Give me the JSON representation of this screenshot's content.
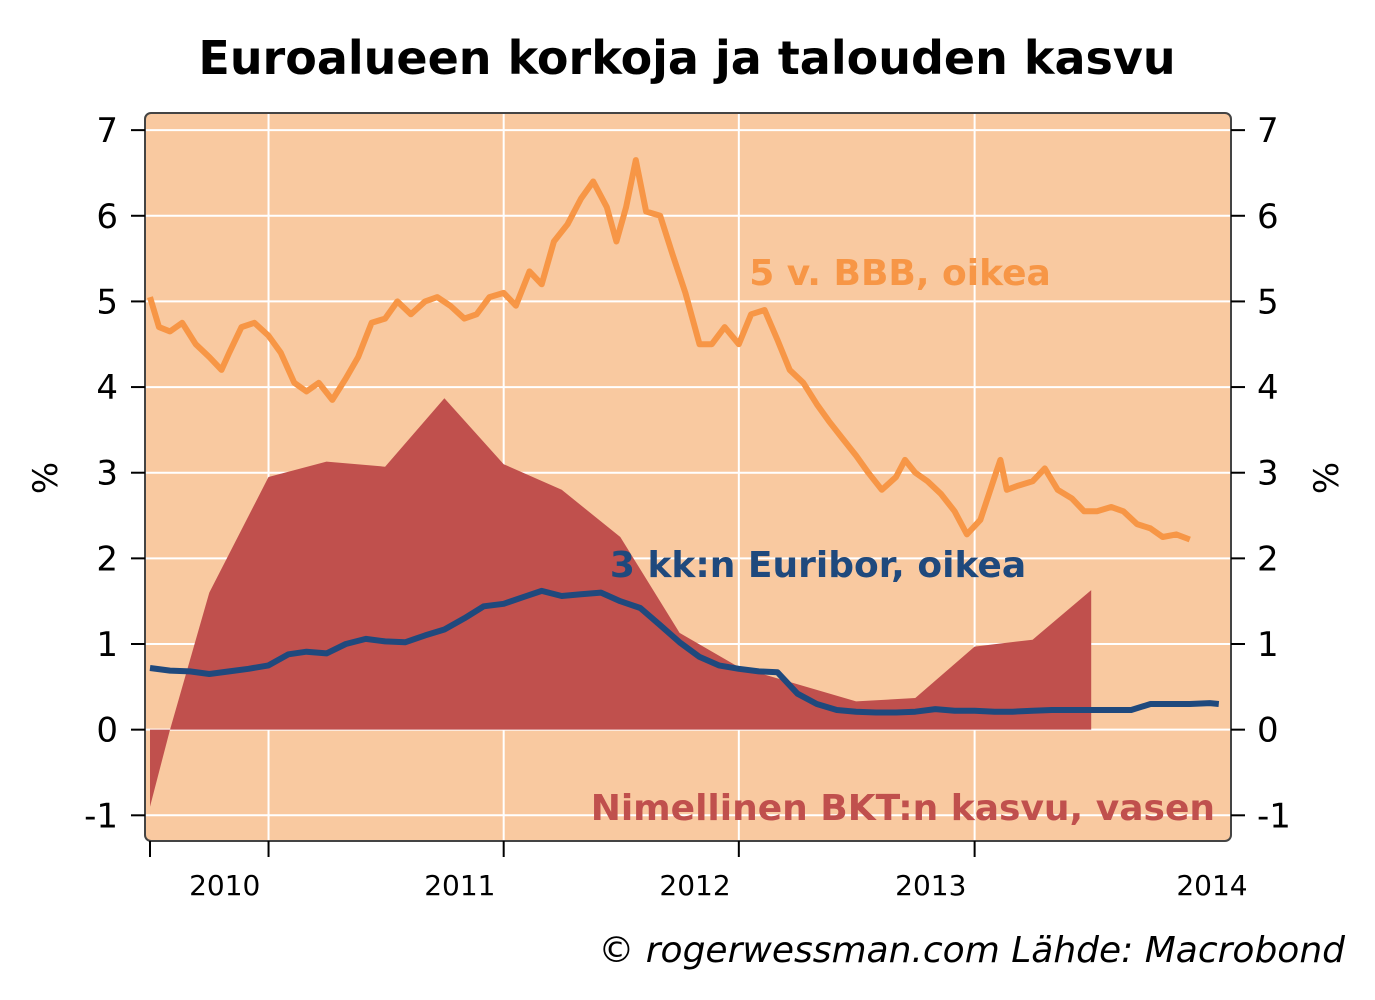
{
  "title": "Euroalueen korkoja ja talouden kasvu",
  "credit": "© rogerwessman.com Lähde: Macrobond",
  "colors": {
    "background": "#F9C9A0",
    "gdp": "#C0504D",
    "bbb": "#F79646",
    "euribor": "#1F497D",
    "grid": "#ffffff"
  },
  "chart_data": {
    "type": "line",
    "ylabel_left": "%",
    "ylabel_right": "%",
    "ylim": [
      -1.3,
      7.2
    ],
    "yticks": [
      "7",
      "6",
      "5",
      "4",
      "3",
      "2",
      "1",
      "0",
      "-1"
    ],
    "xlim": [
      "2009-07-01",
      "2014-01-20"
    ],
    "xticks": [
      "2010",
      "2011",
      "2012",
      "2013",
      "2014"
    ],
    "grid": true,
    "series": [
      {
        "name": "Nimellinen BKT:n kasvu, vasen",
        "type": "area",
        "axis": "left",
        "points": [
          [
            "2009-07-01",
            -0.9
          ],
          [
            "2009-08-01",
            0.0
          ],
          [
            "2009-10-01",
            1.6
          ],
          [
            "2010-01-01",
            2.95
          ],
          [
            "2010-04-01",
            3.13
          ],
          [
            "2010-07-01",
            3.07
          ],
          [
            "2010-10-01",
            3.87
          ],
          [
            "2011-01-01",
            3.1
          ],
          [
            "2011-04-01",
            2.8
          ],
          [
            "2011-07-01",
            2.25
          ],
          [
            "2011-10-01",
            1.13
          ],
          [
            "2012-01-01",
            0.73
          ],
          [
            "2012-04-01",
            0.53
          ],
          [
            "2012-07-01",
            0.33
          ],
          [
            "2012-10-01",
            0.37
          ],
          [
            "2013-01-01",
            0.97
          ],
          [
            "2013-04-01",
            1.05
          ],
          [
            "2013-07-01",
            1.63
          ]
        ]
      },
      {
        "name": "5 v. BBB, oikea",
        "type": "line",
        "axis": "right",
        "points": [
          [
            "2009-07-01",
            5.05
          ],
          [
            "2009-07-15",
            4.7
          ],
          [
            "2009-08-01",
            4.65
          ],
          [
            "2009-08-20",
            4.75
          ],
          [
            "2009-09-10",
            4.5
          ],
          [
            "2009-10-01",
            4.35
          ],
          [
            "2009-10-20",
            4.2
          ],
          [
            "2009-11-01",
            4.4
          ],
          [
            "2009-11-20",
            4.7
          ],
          [
            "2009-12-10",
            4.75
          ],
          [
            "2010-01-01",
            4.6
          ],
          [
            "2010-01-20",
            4.4
          ],
          [
            "2010-02-10",
            4.05
          ],
          [
            "2010-03-01",
            3.95
          ],
          [
            "2010-03-20",
            4.05
          ],
          [
            "2010-04-10",
            3.85
          ],
          [
            "2010-05-01",
            4.1
          ],
          [
            "2010-05-20",
            4.35
          ],
          [
            "2010-06-10",
            4.75
          ],
          [
            "2010-07-01",
            4.8
          ],
          [
            "2010-07-20",
            5.0
          ],
          [
            "2010-08-10",
            4.85
          ],
          [
            "2010-09-01",
            5.0
          ],
          [
            "2010-09-20",
            5.05
          ],
          [
            "2010-10-10",
            4.95
          ],
          [
            "2010-11-01",
            4.8
          ],
          [
            "2010-11-20",
            4.85
          ],
          [
            "2010-12-10",
            5.05
          ],
          [
            "2011-01-01",
            5.1
          ],
          [
            "2011-01-20",
            4.95
          ],
          [
            "2011-02-10",
            5.35
          ],
          [
            "2011-03-01",
            5.2
          ],
          [
            "2011-03-20",
            5.7
          ],
          [
            "2011-04-10",
            5.9
          ],
          [
            "2011-05-01",
            6.2
          ],
          [
            "2011-05-20",
            6.4
          ],
          [
            "2011-06-10",
            6.1
          ],
          [
            "2011-06-25",
            5.7
          ],
          [
            "2011-07-10",
            6.1
          ],
          [
            "2011-07-25",
            6.65
          ],
          [
            "2011-08-10",
            6.05
          ],
          [
            "2011-09-01",
            6.0
          ],
          [
            "2011-09-20",
            5.55
          ],
          [
            "2011-10-10",
            5.1
          ],
          [
            "2011-11-01",
            4.5
          ],
          [
            "2011-11-20",
            4.5
          ],
          [
            "2011-12-10",
            4.7
          ],
          [
            "2012-01-01",
            4.5
          ],
          [
            "2012-01-20",
            4.85
          ],
          [
            "2012-02-10",
            4.9
          ],
          [
            "2012-03-01",
            4.55
          ],
          [
            "2012-03-20",
            4.2
          ],
          [
            "2012-04-10",
            4.05
          ],
          [
            "2012-05-01",
            3.8
          ],
          [
            "2012-05-20",
            3.6
          ],
          [
            "2012-06-10",
            3.4
          ],
          [
            "2012-07-01",
            3.2
          ],
          [
            "2012-07-20",
            3.0
          ],
          [
            "2012-08-10",
            2.8
          ],
          [
            "2012-09-01",
            2.95
          ],
          [
            "2012-09-15",
            3.15
          ],
          [
            "2012-10-01",
            3.0
          ],
          [
            "2012-10-20",
            2.9
          ],
          [
            "2012-11-10",
            2.75
          ],
          [
            "2012-12-01",
            2.55
          ],
          [
            "2012-12-20",
            2.28
          ],
          [
            "2013-01-10",
            2.45
          ],
          [
            "2013-02-01",
            2.95
          ],
          [
            "2013-02-10",
            3.15
          ],
          [
            "2013-02-20",
            2.8
          ],
          [
            "2013-03-10",
            2.85
          ],
          [
            "2013-04-01",
            2.9
          ],
          [
            "2013-04-20",
            3.05
          ],
          [
            "2013-05-10",
            2.8
          ],
          [
            "2013-06-01",
            2.7
          ],
          [
            "2013-06-20",
            2.55
          ],
          [
            "2013-07-10",
            2.55
          ],
          [
            "2013-08-01",
            2.6
          ],
          [
            "2013-08-20",
            2.55
          ],
          [
            "2013-09-10",
            2.4
          ],
          [
            "2013-10-01",
            2.35
          ],
          [
            "2013-10-20",
            2.25
          ],
          [
            "2013-11-10",
            2.28
          ],
          [
            "2013-12-01",
            2.22
          ]
        ]
      },
      {
        "name": "3 kk:n Euribor, oikea",
        "type": "line",
        "axis": "right",
        "points": [
          [
            "2009-07-01",
            0.72
          ],
          [
            "2009-08-01",
            0.69
          ],
          [
            "2009-09-01",
            0.68
          ],
          [
            "2009-10-01",
            0.65
          ],
          [
            "2009-11-01",
            0.68
          ],
          [
            "2009-12-01",
            0.71
          ],
          [
            "2010-01-01",
            0.75
          ],
          [
            "2010-02-01",
            0.88
          ],
          [
            "2010-03-01",
            0.91
          ],
          [
            "2010-04-01",
            0.89
          ],
          [
            "2010-05-01",
            1.0
          ],
          [
            "2010-06-01",
            1.06
          ],
          [
            "2010-07-01",
            1.03
          ],
          [
            "2010-08-01",
            1.02
          ],
          [
            "2010-09-01",
            1.1
          ],
          [
            "2010-10-01",
            1.17
          ],
          [
            "2010-11-01",
            1.3
          ],
          [
            "2010-12-01",
            1.44
          ],
          [
            "2011-01-01",
            1.47
          ],
          [
            "2011-02-01",
            1.55
          ],
          [
            "2011-03-01",
            1.62
          ],
          [
            "2011-04-01",
            1.56
          ],
          [
            "2011-05-01",
            1.58
          ],
          [
            "2011-06-01",
            1.6
          ],
          [
            "2011-07-01",
            1.5
          ],
          [
            "2011-08-01",
            1.42
          ],
          [
            "2011-09-01",
            1.22
          ],
          [
            "2011-10-01",
            1.02
          ],
          [
            "2011-11-01",
            0.85
          ],
          [
            "2011-12-01",
            0.75
          ],
          [
            "2012-01-01",
            0.71
          ],
          [
            "2012-02-01",
            0.68
          ],
          [
            "2012-03-01",
            0.67
          ],
          [
            "2012-04-01",
            0.42
          ],
          [
            "2012-05-01",
            0.3
          ],
          [
            "2012-06-01",
            0.23
          ],
          [
            "2012-07-01",
            0.21
          ],
          [
            "2012-08-01",
            0.2
          ],
          [
            "2012-09-01",
            0.2
          ],
          [
            "2012-10-01",
            0.21
          ],
          [
            "2012-11-01",
            0.24
          ],
          [
            "2012-12-01",
            0.22
          ],
          [
            "2013-01-01",
            0.22
          ],
          [
            "2013-02-01",
            0.21
          ],
          [
            "2013-03-01",
            0.21
          ],
          [
            "2013-04-01",
            0.22
          ],
          [
            "2013-05-01",
            0.23
          ],
          [
            "2013-06-01",
            0.23
          ],
          [
            "2013-07-01",
            0.23
          ],
          [
            "2013-08-01",
            0.23
          ],
          [
            "2013-09-01",
            0.23
          ],
          [
            "2013-10-01",
            0.3
          ],
          [
            "2013-11-01",
            0.3
          ],
          [
            "2013-12-01",
            0.3
          ],
          [
            "2014-01-01",
            0.31
          ],
          [
            "2014-01-15",
            0.3
          ]
        ]
      }
    ],
    "labels": {
      "bbb": "5 v. BBB, oikea",
      "euribor": "3 kk:n Euribor, oikea",
      "gdp": "Nimellinen BKT:n kasvu, vasen"
    }
  }
}
